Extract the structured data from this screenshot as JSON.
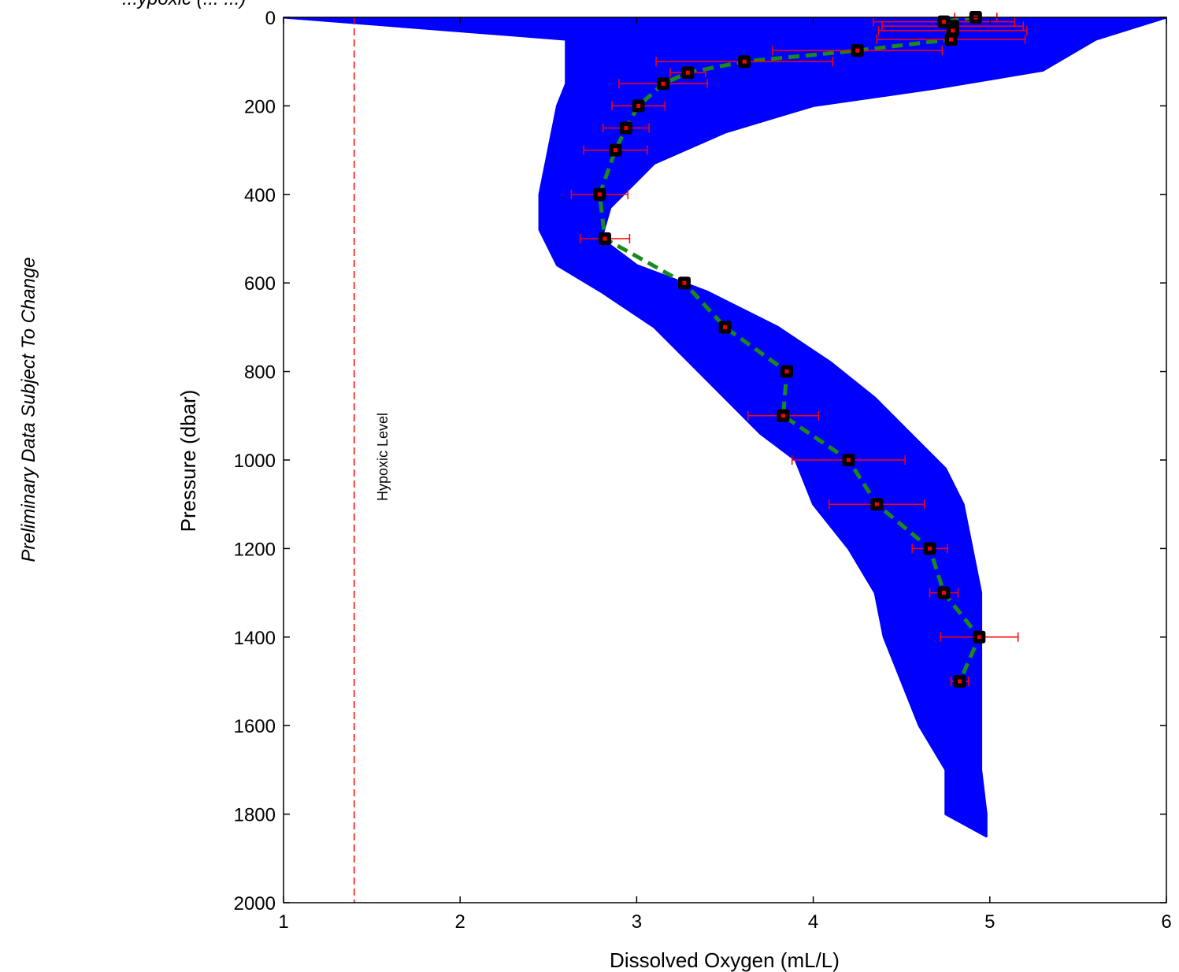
{
  "side_note": "Preliminary Data Subject  To Change",
  "top_fragment": "...ypoxic (... ...)",
  "colors": {
    "cloud": "#0000ff",
    "mean_line": "#1a8a1a",
    "errorbar": "#ff0000",
    "marker_fill": "#000000",
    "marker_center": "#ff0000",
    "hypoxic_line": "#ff0000"
  },
  "chart_data": {
    "type": "scatter",
    "xlabel": "Dissolved Oxygen (mL/L)",
    "ylabel": "Pressure (dbar)",
    "xlim": [
      1,
      6
    ],
    "ylim": [
      0,
      2000
    ],
    "y_reversed": true,
    "xticks": [
      1,
      2,
      3,
      4,
      5,
      6
    ],
    "yticks": [
      0,
      200,
      400,
      600,
      800,
      1000,
      1200,
      1400,
      1600,
      1800,
      2000
    ],
    "grid": false,
    "reference_lines": [
      {
        "x": 1.4,
        "label": "Hypoxic Level",
        "style": "dashed"
      }
    ],
    "scatter_cloud": {
      "description": "individual profile samples",
      "left_edge": [
        [
          1.0,
          0
        ],
        [
          2.6,
          50
        ],
        [
          2.6,
          150
        ],
        [
          2.55,
          200
        ],
        [
          2.5,
          300
        ],
        [
          2.45,
          400
        ],
        [
          2.45,
          480
        ],
        [
          2.55,
          560
        ],
        [
          2.8,
          620
        ],
        [
          3.1,
          700
        ],
        [
          3.3,
          780
        ],
        [
          3.5,
          860
        ],
        [
          3.7,
          940
        ],
        [
          3.9,
          1000
        ],
        [
          4.0,
          1100
        ],
        [
          4.2,
          1200
        ],
        [
          4.35,
          1300
        ],
        [
          4.4,
          1400
        ],
        [
          4.5,
          1500
        ],
        [
          4.6,
          1600
        ],
        [
          4.75,
          1700
        ],
        [
          4.75,
          1800
        ]
      ],
      "right_edge": [
        [
          6.0,
          0
        ],
        [
          5.6,
          50
        ],
        [
          5.3,
          120
        ],
        [
          4.7,
          160
        ],
        [
          4.0,
          200
        ],
        [
          3.5,
          260
        ],
        [
          3.1,
          330
        ],
        [
          2.85,
          430
        ],
        [
          2.8,
          500
        ],
        [
          3.0,
          560
        ],
        [
          3.4,
          620
        ],
        [
          3.8,
          700
        ],
        [
          4.1,
          780
        ],
        [
          4.35,
          860
        ],
        [
          4.55,
          940
        ],
        [
          4.75,
          1020
        ],
        [
          4.85,
          1100
        ],
        [
          4.9,
          1200
        ],
        [
          4.95,
          1300
        ],
        [
          4.95,
          1400
        ],
        [
          4.95,
          1500
        ],
        [
          4.95,
          1600
        ],
        [
          4.95,
          1700
        ],
        [
          4.98,
          1800
        ],
        [
          4.98,
          1850
        ]
      ]
    },
    "series": [
      {
        "type": "line-with-xerror",
        "style": "dashed",
        "points": [
          {
            "p": 0,
            "x": 4.92,
            "xerr": 0.12
          },
          {
            "p": 10,
            "x": 4.74,
            "xerr": 0.4
          },
          {
            "p": 20,
            "x": 4.79,
            "xerr": 0.4
          },
          {
            "p": 30,
            "x": 4.79,
            "xerr": 0.42
          },
          {
            "p": 50,
            "x": 4.78,
            "xerr": 0.42
          },
          {
            "p": 75,
            "x": 4.25,
            "xerr": 0.48
          },
          {
            "p": 100,
            "x": 3.61,
            "xerr": 0.5
          },
          {
            "p": 125,
            "x": 3.29,
            "xerr": 0.1
          },
          {
            "p": 150,
            "x": 3.15,
            "xerr": 0.25
          },
          {
            "p": 200,
            "x": 3.01,
            "xerr": 0.15
          },
          {
            "p": 250,
            "x": 2.94,
            "xerr": 0.13
          },
          {
            "p": 300,
            "x": 2.88,
            "xerr": 0.18
          },
          {
            "p": 400,
            "x": 2.79,
            "xerr": 0.16
          },
          {
            "p": 500,
            "x": 2.82,
            "xerr": 0.14
          },
          {
            "p": 600,
            "x": 3.27,
            "xerr": 0.0
          },
          {
            "p": 700,
            "x": 3.5,
            "xerr": 0.0
          },
          {
            "p": 800,
            "x": 3.85,
            "xerr": 0.0
          },
          {
            "p": 900,
            "x": 3.83,
            "xerr": 0.2
          },
          {
            "p": 1000,
            "x": 4.2,
            "xerr": 0.32
          },
          {
            "p": 1100,
            "x": 4.36,
            "xerr": 0.27
          },
          {
            "p": 1200,
            "x": 4.66,
            "xerr": 0.1
          },
          {
            "p": 1300,
            "x": 4.74,
            "xerr": 0.08
          },
          {
            "p": 1400,
            "x": 4.94,
            "xerr": 0.22
          },
          {
            "p": 1500,
            "x": 4.83,
            "xerr": 0.05
          }
        ]
      }
    ]
  }
}
